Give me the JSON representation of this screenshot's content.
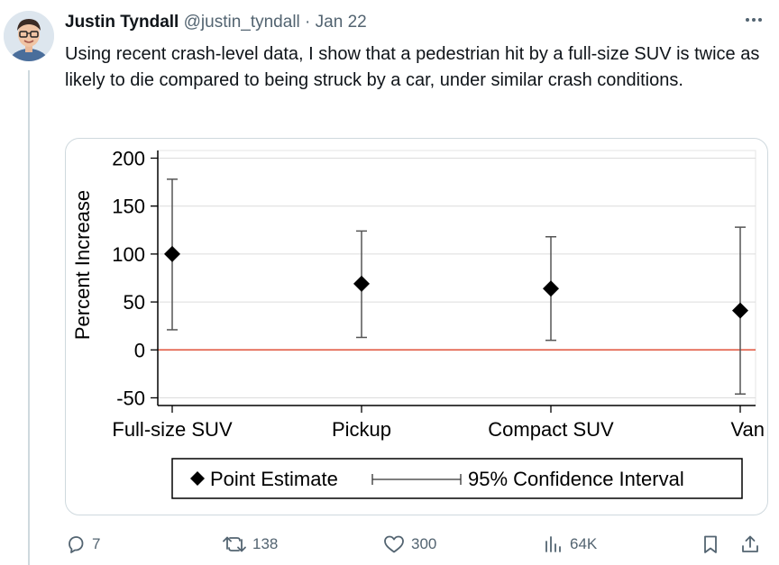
{
  "tweet": {
    "author_name": "Justin Tyndall",
    "handle": "@justin_tyndall",
    "separator": "·",
    "date": "Jan 22",
    "text": "Using recent crash-level data, I show that a pedestrian hit by a full-size SUV is twice as likely to die compared to being struck by a car, under similar crash conditions.",
    "more_icon": "more-horizontal-icon"
  },
  "actions": {
    "replies": "7",
    "retweets": "138",
    "likes": "300",
    "views": "64K"
  },
  "colors": {
    "text": "#0f1419",
    "secondary": "#536471",
    "zero_line": "#e0523a"
  },
  "chart_data": {
    "type": "scatter",
    "categories": [
      "Full-size SUV",
      "Pickup",
      "Compact SUV",
      "Van"
    ],
    "point_estimate": [
      100,
      69,
      64,
      41
    ],
    "ci_low": [
      21,
      13,
      10,
      -46
    ],
    "ci_high": [
      178,
      124,
      118,
      128
    ],
    "ylabel": "Percent Increase",
    "xlabel": "",
    "yticks": [
      200,
      150,
      100,
      50,
      0,
      -50
    ],
    "ylim": [
      -58,
      208
    ],
    "reference_line": 0,
    "grid": true,
    "legend": {
      "position": "bottom",
      "entries": [
        "Point Estimate",
        "95% Confidence Interval"
      ]
    }
  }
}
